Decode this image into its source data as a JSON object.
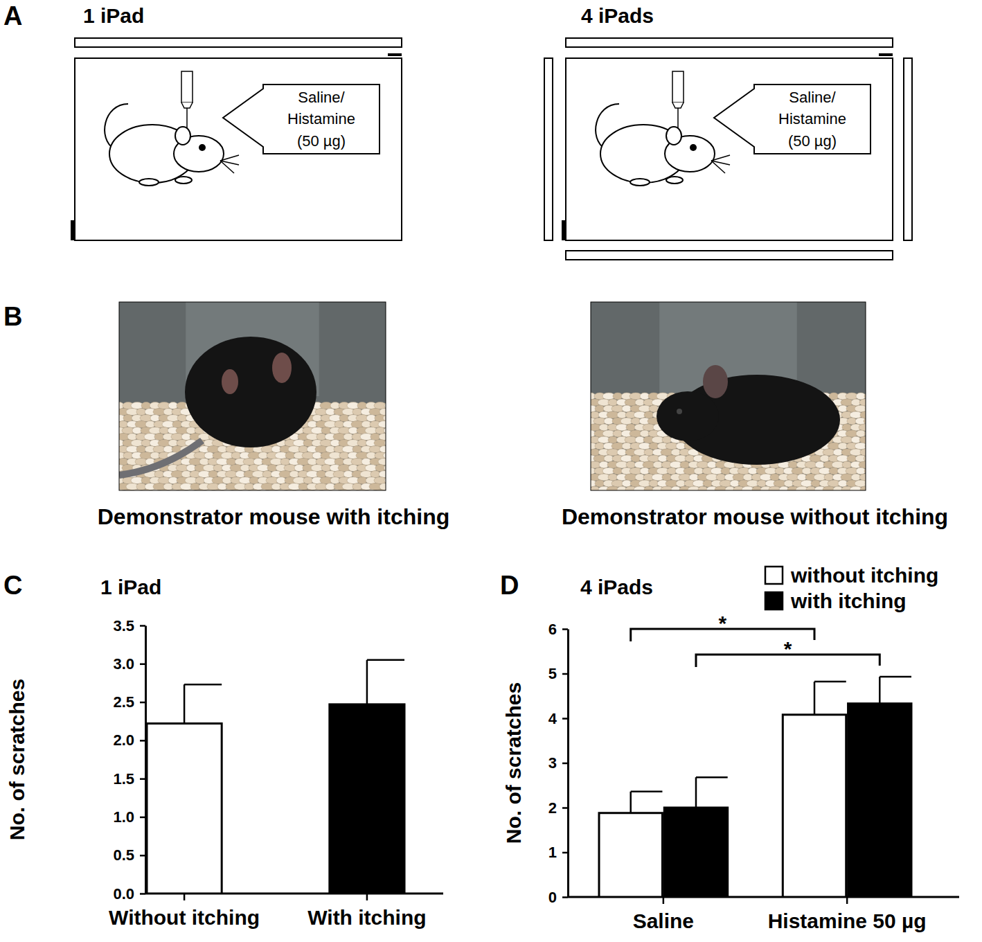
{
  "panel_labels": [
    "A",
    "B",
    "C",
    "D"
  ],
  "diagram": {
    "setups": [
      {
        "title": "1 iPad",
        "box_text": [
          "Saline/",
          "Histamine",
          "(50 µg)"
        ]
      },
      {
        "title": "4 iPads",
        "box_text": [
          "Saline/",
          "Histamine",
          "(50 µg)"
        ]
      }
    ]
  },
  "photos": {
    "captions": [
      "Demonstrator mouse with itching",
      "Demonstrator mouse without itching"
    ]
  },
  "chart_data": [
    {
      "type": "bar",
      "title": "1 iPad",
      "ylabel": "No. of scratches",
      "categories": [
        "Without itching",
        "With itching"
      ],
      "values": [
        2.22,
        2.47
      ],
      "errors": [
        0.51,
        0.58
      ],
      "colors": [
        "#ffffff",
        "#000000"
      ],
      "ylim": [
        0,
        3.5
      ],
      "yticks": [
        {
          "value": 0,
          "label": "0.0"
        },
        0.5,
        {
          "value": 1,
          "label": "1.0"
        },
        1.5,
        {
          "value": 2,
          "label": "2.0"
        },
        2.5,
        {
          "value": 3,
          "label": "3.0"
        },
        3.5
      ]
    },
    {
      "type": "bar",
      "title": "4 iPads",
      "ylabel": "No. of scratches",
      "categories": [
        "Saline",
        "Histamine 50 µg"
      ],
      "series": [
        {
          "name": "without itching",
          "color": "#ffffff",
          "values": [
            1.88,
            4.08
          ],
          "errors": [
            0.48,
            0.74
          ]
        },
        {
          "name": "with itching",
          "color": "#000000",
          "values": [
            2.0,
            4.33
          ],
          "errors": [
            0.68,
            0.6
          ]
        }
      ],
      "ylim": [
        0,
        6
      ],
      "yticks": [
        0,
        1,
        2,
        3,
        4,
        5,
        6
      ],
      "legend": "top right",
      "annotations": [
        "*",
        "*"
      ]
    }
  ]
}
